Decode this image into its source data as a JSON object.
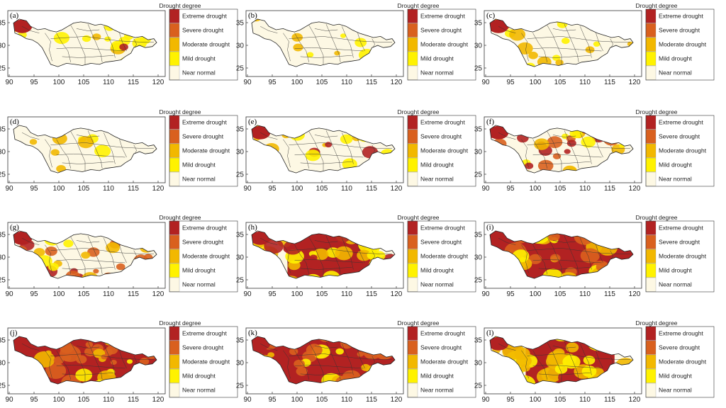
{
  "figure": {
    "x_ticks": [
      "90",
      "95",
      "100",
      "105",
      "110",
      "115",
      "120"
    ],
    "y_ticks": [
      "35",
      "30",
      "25"
    ],
    "legend_title": "Drought degree",
    "legend_items": [
      {
        "label": "Extreme drought",
        "color": "#b22222"
      },
      {
        "label": "Severe drought",
        "color": "#d9601e"
      },
      {
        "label": "Moderate drought",
        "color": "#f2b800"
      },
      {
        "label": "Mild drought",
        "color": "#fff200"
      },
      {
        "label": "Near normal",
        "color": "#fdf8e4"
      }
    ],
    "panels": [
      {
        "label": "(a)",
        "level": 1
      },
      {
        "label": "(b)",
        "level": 0
      },
      {
        "label": "(c)",
        "level": 1
      },
      {
        "label": "(d)",
        "level": 0
      },
      {
        "label": "(e)",
        "level": 1
      },
      {
        "label": "(f)",
        "level": 2
      },
      {
        "label": "(g)",
        "level": 2
      },
      {
        "label": "(h)",
        "level": 3
      },
      {
        "label": "(i)",
        "level": 4
      },
      {
        "label": "(j)",
        "level": 4
      },
      {
        "label": "(k)",
        "level": 4
      },
      {
        "label": "(l)",
        "level": 3
      }
    ]
  }
}
